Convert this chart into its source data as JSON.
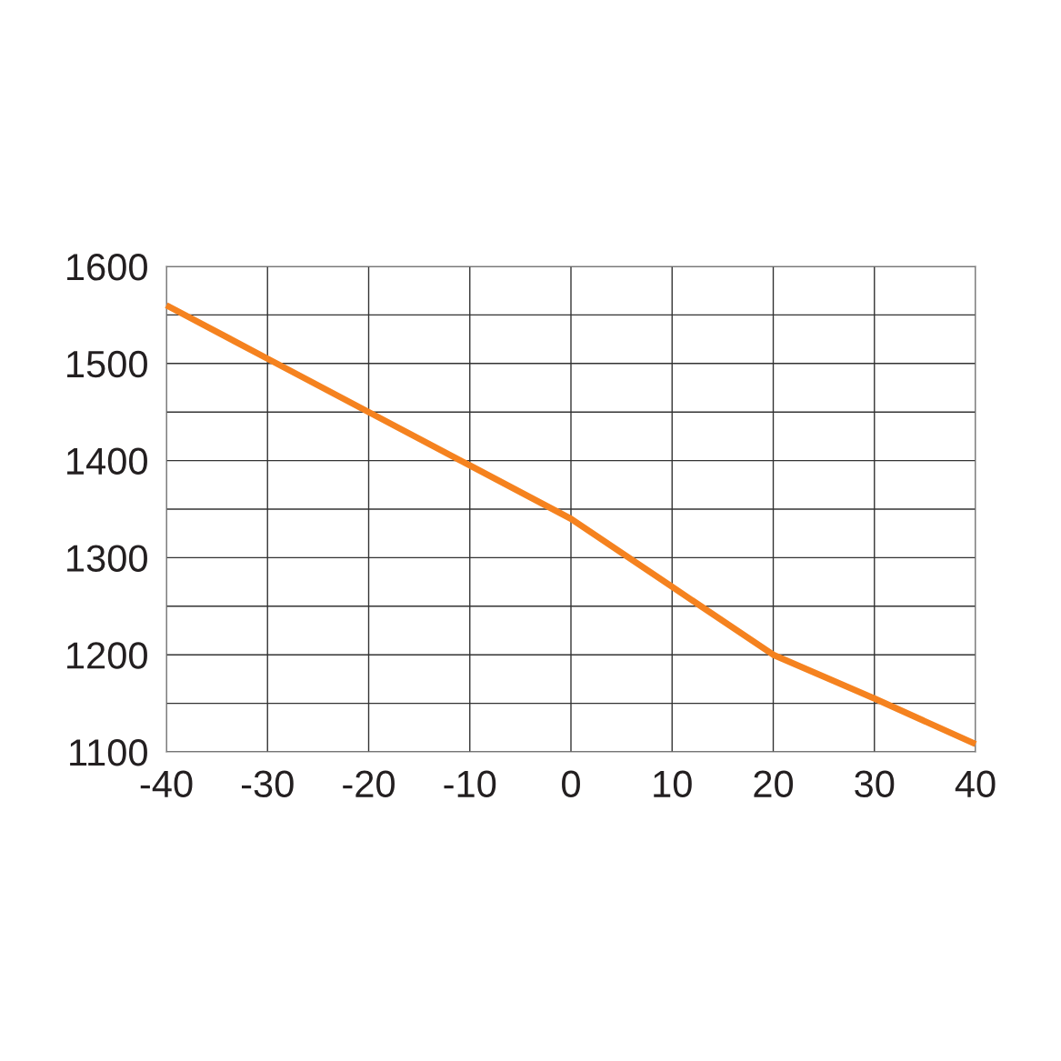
{
  "chart_data": {
    "type": "line",
    "x": [
      -40,
      -30,
      -20,
      -10,
      0,
      10,
      20,
      30,
      40
    ],
    "series": [
      {
        "color": "#f5821f",
        "values": [
          1560,
          1505,
          1450,
          1395,
          1340,
          1270,
          1200,
          1155,
          1108
        ]
      }
    ],
    "xlim": [
      -40,
      40
    ],
    "xticks": [
      -40,
      -30,
      -20,
      -10,
      0,
      10,
      20,
      30,
      40
    ],
    "ylim": [
      1100,
      1600
    ],
    "yticks": [
      1100,
      {
        "value": 1150,
        "label": null
      },
      1200,
      {
        "value": 1250,
        "label": null
      },
      1300,
      {
        "value": 1350,
        "label": null
      },
      1400,
      {
        "value": 1450,
        "label": null
      },
      1500,
      {
        "value": 1550,
        "label": null
      },
      1600
    ],
    "grid": true,
    "marker": "none",
    "line_style": "solid",
    "legend": false
  }
}
